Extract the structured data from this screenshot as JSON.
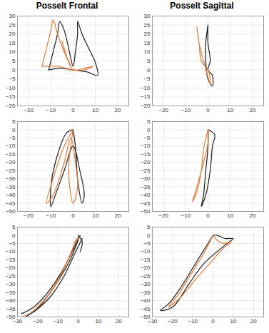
{
  "chart_data": [
    {
      "type": "line",
      "title": "Posselt Frontal",
      "xlim": [
        -25,
        25
      ],
      "ylim": [
        -20,
        30
      ],
      "xticks": [
        -20,
        -10,
        0,
        10,
        20
      ],
      "yticks": [
        -20,
        -15,
        -10,
        -5,
        0,
        5,
        10,
        15,
        20,
        25,
        30
      ],
      "grid": true,
      "series": [
        {
          "color": "#1a1a1a",
          "x": [
            -11,
            -9,
            -7,
            -6,
            -4,
            -2,
            0,
            1,
            2,
            2,
            4,
            7,
            10,
            11,
            6,
            0,
            -6,
            -11
          ],
          "y": [
            0,
            10,
            20,
            27,
            22,
            12,
            2,
            10,
            20,
            27,
            20,
            12,
            4,
            -3,
            -1,
            0,
            1,
            0
          ]
        },
        {
          "color": "#e07b39",
          "x": [
            -14,
            -12,
            -10,
            -9,
            -7,
            -4,
            -1,
            -3,
            -5,
            -3,
            0,
            5,
            9,
            5,
            0,
            -7,
            -14
          ],
          "y": [
            2,
            12,
            22,
            28,
            20,
            10,
            2,
            8,
            16,
            8,
            0,
            1,
            2,
            0,
            0,
            2,
            2
          ]
        }
      ]
    },
    {
      "type": "line",
      "title": "Posselt Sagittal",
      "xlim": [
        -25,
        25
      ],
      "ylim": [
        -20,
        30
      ],
      "xticks": [
        -20,
        -10,
        0,
        10,
        20
      ],
      "yticks": [
        -20,
        -15,
        -10,
        -5,
        0,
        5,
        10,
        15,
        20,
        25,
        30
      ],
      "grid": true,
      "series": [
        {
          "color": "#1a1a1a",
          "x": [
            0,
            0,
            1,
            0,
            2,
            2,
            0,
            -1,
            -1,
            0
          ],
          "y": [
            25,
            15,
            5,
            0,
            -3,
            -9,
            -5,
            5,
            15,
            25
          ]
        },
        {
          "color": "#e07b39",
          "x": [
            -5,
            -4,
            -3,
            0,
            1,
            1,
            0,
            -2,
            -4,
            -5
          ],
          "y": [
            24,
            15,
            5,
            0,
            -5,
            -8,
            -4,
            5,
            15,
            24
          ]
        }
      ]
    },
    {
      "type": "line",
      "xlim": [
        -25,
        25
      ],
      "ylim": [
        -50,
        5
      ],
      "xticks": [
        -20,
        -10,
        0,
        10,
        20
      ],
      "yticks": [
        -50,
        -45,
        -40,
        -35,
        -30,
        -25,
        -20,
        -15,
        -10,
        -5,
        0,
        5
      ],
      "grid": true,
      "series": [
        {
          "color": "#1a1a1a",
          "x": [
            0,
            -3,
            -8,
            -10,
            -10,
            -8,
            -4,
            0,
            3,
            5,
            4,
            2,
            1,
            0
          ],
          "y": [
            0,
            -2,
            -20,
            -35,
            -47,
            -40,
            -25,
            -10,
            -25,
            -40,
            -45,
            -30,
            -10,
            0
          ]
        },
        {
          "color": "#e07b39",
          "x": [
            0,
            -4,
            -9,
            -12,
            -9,
            -4,
            -1,
            1,
            2,
            0,
            -2,
            0
          ],
          "y": [
            0,
            -10,
            -30,
            -45,
            -40,
            -20,
            -5,
            -20,
            -35,
            -45,
            -25,
            0
          ]
        }
      ]
    },
    {
      "type": "line",
      "xlim": [
        -25,
        25
      ],
      "ylim": [
        -50,
        5
      ],
      "xticks": [
        -20,
        -10,
        0,
        10,
        20
      ],
      "yticks": [
        -50,
        -45,
        -40,
        -35,
        -30,
        -25,
        -20,
        -15,
        -10,
        -5,
        0,
        5
      ],
      "grid": true,
      "series": [
        {
          "color": "#1a1a1a",
          "x": [
            0,
            0,
            -1,
            -2,
            -3,
            -1,
            1,
            2,
            3,
            0
          ],
          "y": [
            0,
            -10,
            -25,
            -40,
            -47,
            -40,
            -25,
            -10,
            -3,
            0
          ]
        },
        {
          "color": "#e07b39",
          "x": [
            0,
            -2,
            -3,
            -5,
            -7,
            -5,
            -2,
            0,
            0
          ],
          "y": [
            0,
            -12,
            -25,
            -38,
            -44,
            -35,
            -20,
            -8,
            0
          ]
        }
      ]
    },
    {
      "type": "line",
      "xlim": [
        -30,
        25
      ],
      "ylim": [
        -50,
        5
      ],
      "xticks": [
        -30,
        -20,
        -10,
        0,
        10,
        20
      ],
      "yticks": [
        -50,
        -45,
        -40,
        -35,
        -30,
        -25,
        -20,
        -15,
        -10,
        -5,
        0,
        5
      ],
      "grid": true,
      "series": [
        {
          "color": "#1a1a1a",
          "x": [
            1,
            -3,
            -8,
            -15,
            -22,
            -28
          ],
          "y": [
            0,
            -10,
            -22,
            -35,
            -44,
            -48
          ]
        },
        {
          "color": "#1a1a1a",
          "x": [
            2,
            -2,
            -7,
            -14,
            -20,
            -26
          ],
          "y": [
            -2,
            -12,
            -25,
            -38,
            -45,
            -50
          ]
        },
        {
          "color": "#1a1a1a",
          "x": [
            0,
            -4,
            -10,
            -18,
            -22
          ],
          "y": [
            -3,
            -15,
            -28,
            -42,
            -47
          ]
        },
        {
          "color": "#1a1a1a",
          "x": [
            0,
            2,
            1
          ],
          "y": [
            0,
            -4,
            -10
          ]
        },
        {
          "color": "#e07b39",
          "x": [
            0,
            -4,
            -9,
            -15,
            -23,
            -28
          ],
          "y": [
            -1,
            -12,
            -25,
            -37,
            -47,
            -50
          ]
        },
        {
          "color": "#e07b39",
          "x": [
            -1,
            -5,
            -11,
            -17,
            -20
          ],
          "y": [
            -2,
            -15,
            -30,
            -40,
            -44
          ]
        }
      ]
    },
    {
      "type": "line",
      "xlim": [
        -30,
        25
      ],
      "ylim": [
        -50,
        5
      ],
      "xticks": [
        -30,
        -20,
        -10,
        0,
        10,
        20
      ],
      "yticks": [
        -50,
        -45,
        -40,
        -35,
        -30,
        -25,
        -20,
        -15,
        -10,
        -5,
        0,
        5
      ],
      "grid": true,
      "series": [
        {
          "color": "#1a1a1a",
          "x": [
            0,
            -4,
            -10,
            -16,
            -22,
            -26,
            -20,
            -12,
            -5,
            2,
            8,
            10,
            6,
            2,
            0
          ],
          "y": [
            0,
            -8,
            -20,
            -32,
            -42,
            -46,
            -44,
            -30,
            -18,
            -10,
            -4,
            -2,
            -2,
            0,
            0
          ]
        },
        {
          "color": "#e07b39",
          "x": [
            0,
            -5,
            -11,
            -17,
            -22,
            -16,
            -8,
            0,
            5,
            9,
            5,
            2,
            0
          ],
          "y": [
            0,
            -12,
            -24,
            -36,
            -44,
            -38,
            -26,
            -15,
            -8,
            -4,
            -5,
            -3,
            0
          ]
        }
      ]
    }
  ]
}
